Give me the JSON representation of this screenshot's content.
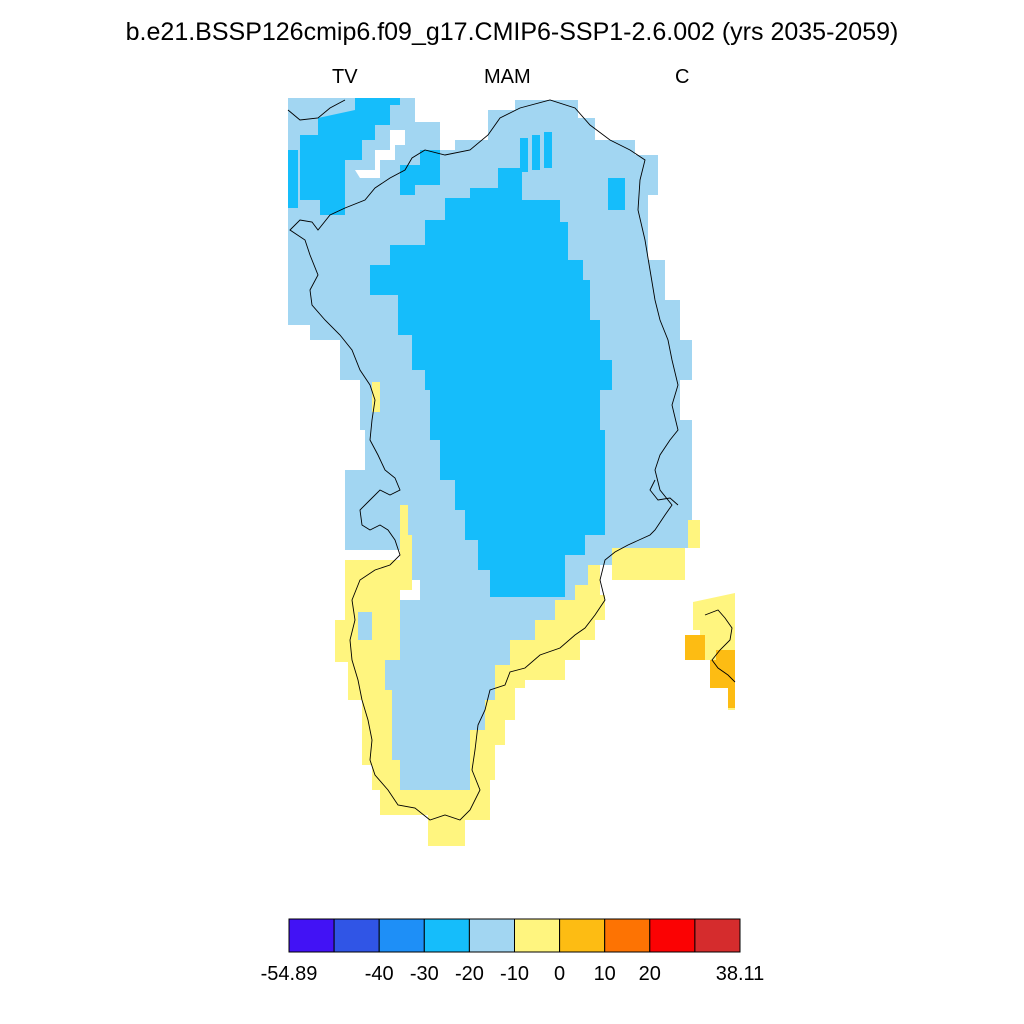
{
  "title": "b.e21.BSSP126cmip6.f09_g17.CMIP6-SSP1-2.6.002 (yrs 2035-2059)",
  "subtitle_left": "TV",
  "subtitle_center": "MAM",
  "subtitle_right": "C",
  "colorbar": {
    "colors": [
      "#4212f5",
      "#3055e6",
      "#1e8ff7",
      "#15bdfb",
      "#a2d6f2",
      "#fff57f",
      "#fdbc13",
      "#fd7303",
      "#fb0203",
      "#d52c2d"
    ],
    "labels": [
      "-54.89",
      "-40",
      "-30",
      "-20",
      "-10",
      "0",
      "10",
      "20",
      "38.11"
    ]
  },
  "legend": {
    "deep_negative": "#15bdfb",
    "moderate_negative": "#a2d6f2",
    "near_zero_positive": "#fff57f",
    "positive": "#fdbc13"
  }
}
